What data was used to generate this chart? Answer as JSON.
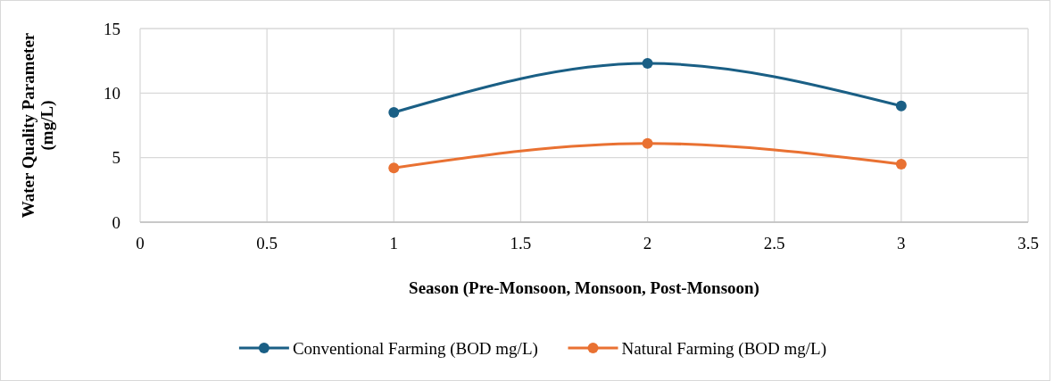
{
  "chart_data": {
    "type": "line",
    "xlabel": "Season (Pre-Monsoon, Monsoon, Post-Monsoon)",
    "ylabel": "Water Quality Parameter (mg/L)",
    "x": [
      1,
      2,
      3
    ],
    "series": [
      {
        "name": "Conventional Farming (BOD mg/L)",
        "color": "#1a5f85",
        "values": [
          8.5,
          12.3,
          9.0
        ]
      },
      {
        "name": "Natural Farming (BOD mg/L)",
        "color": "#e97132",
        "values": [
          4.2,
          6.1,
          4.5
        ]
      }
    ],
    "xlim": [
      0,
      3.5
    ],
    "xticks": [
      0,
      0.5,
      1,
      1.5,
      2,
      2.5,
      3,
      3.5
    ],
    "ylim": [
      0,
      15
    ],
    "yticks": [
      0,
      5,
      10,
      15
    ],
    "grid": true,
    "legend": "bottom",
    "marker": "circle",
    "line_style": "solid"
  }
}
